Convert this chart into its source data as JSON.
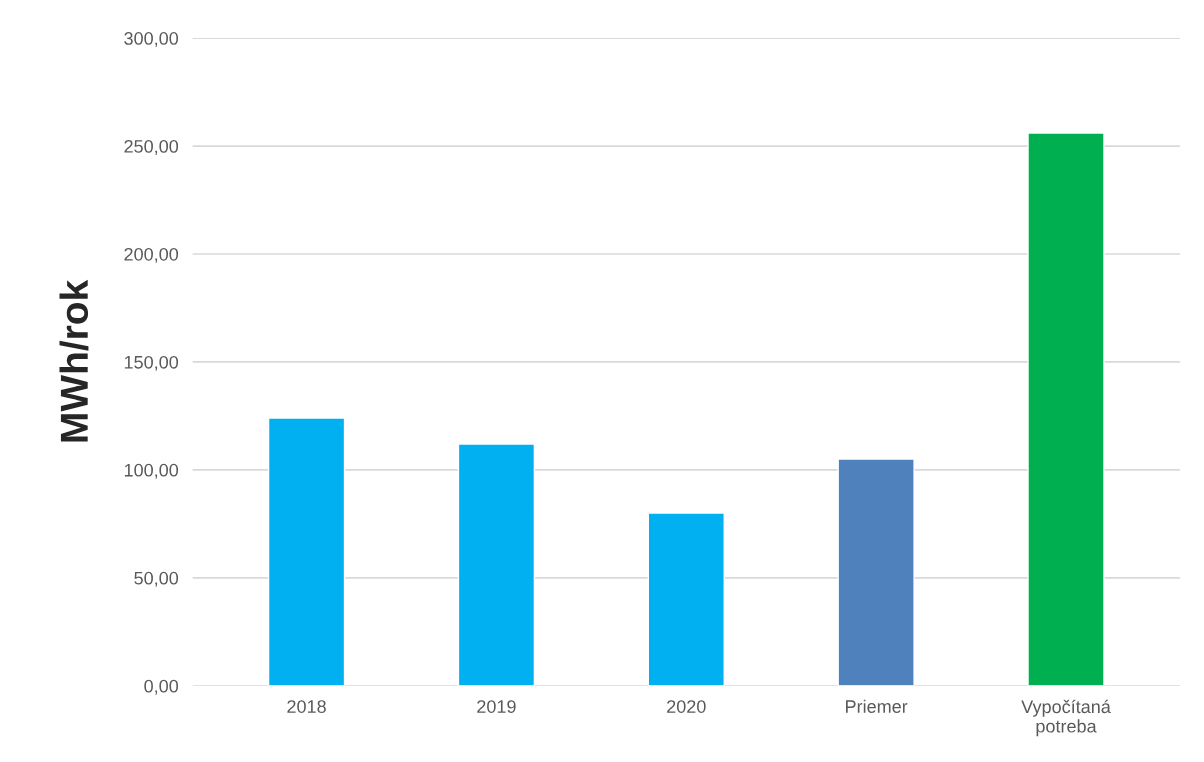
{
  "chart_data": {
    "type": "bar",
    "ylabel": "MWh/rok",
    "categories": [
      "2018",
      "2019",
      "2020",
      "Priemer",
      "Vypočítaná\npotreba"
    ],
    "values": [
      124,
      112,
      80,
      105,
      256
    ],
    "colors": [
      "#00b0f0",
      "#00b0f0",
      "#00b0f0",
      "#4f81bd",
      "#00b050"
    ],
    "ylim": [
      0,
      300
    ],
    "yticks": [
      {
        "value": 0,
        "label": "0,00"
      },
      {
        "value": 50,
        "label": "50,00"
      },
      {
        "value": 100,
        "label": "100,00"
      },
      {
        "value": 150,
        "label": "150,00"
      },
      {
        "value": 200,
        "label": "200,00"
      },
      {
        "value": 250,
        "label": "250,00"
      },
      {
        "value": 300,
        "label": "300,00"
      }
    ],
    "grid": "y",
    "legend": false
  }
}
